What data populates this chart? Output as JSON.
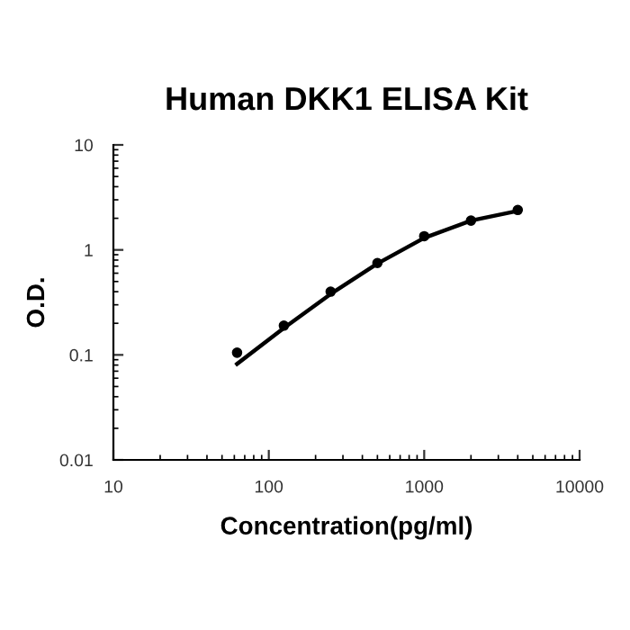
{
  "chart_data": {
    "type": "scatter",
    "title": "Human DKK1 ELISA Kit",
    "xlabel": "Concentration(pg/ml)",
    "ylabel": "O.D.",
    "log": "xy",
    "grid": false,
    "xlim": [
      10,
      10000
    ],
    "xticks": [
      10,
      100,
      1000,
      10000
    ],
    "ylim": [
      0.01,
      10
    ],
    "yticks": [
      0.01,
      0.1,
      1,
      10
    ],
    "series": [
      {
        "marker": "circle",
        "color": "#000000",
        "x": [
          62.5,
          125,
          250,
          500,
          1000,
          2000,
          4000
        ],
        "values": [
          0.105,
          0.19,
          0.4,
          0.75,
          1.35,
          1.9,
          2.4
        ]
      },
      {
        "type": "line",
        "marker": "none",
        "color": "#000000",
        "line_style": "solid",
        "x": [
          62.5,
          125,
          250,
          500,
          1000,
          2000,
          4000
        ],
        "values": [
          0.082,
          0.18,
          0.38,
          0.74,
          1.3,
          1.9,
          2.35
        ]
      }
    ]
  }
}
